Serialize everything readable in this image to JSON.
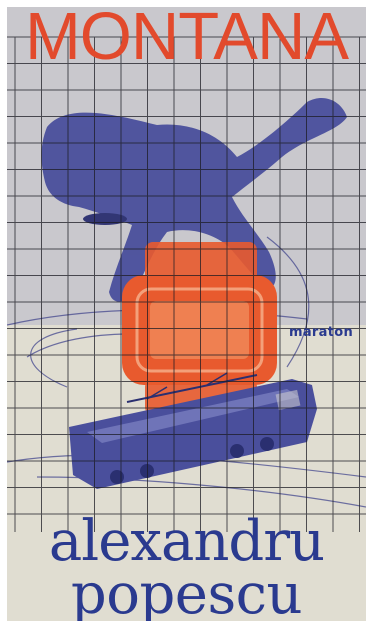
{
  "cover": {
    "title": "MONTANA",
    "publisher": "maraton",
    "author_first": "alexandru",
    "author_last": "popescu"
  },
  "colors": {
    "title": "#e24a2c",
    "author": "#2a3a8f",
    "figure": "#4a4f9c",
    "watch": "#e85a2e",
    "grid": "#1c1c24"
  },
  "icons": [
    "jumping-figure-icon",
    "wristwatch-icon",
    "locomotive-icon"
  ]
}
